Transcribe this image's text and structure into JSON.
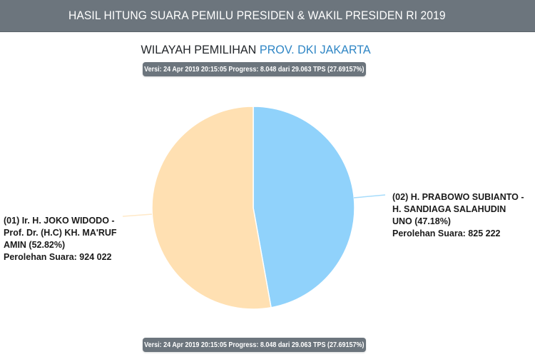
{
  "header": {
    "title": "HASIL HITUNG SUARA PEMILU PRESIDEN & WAKIL PRESIDEN RI 2019"
  },
  "region": {
    "prefix": "WILAYAH PEMILIHAN",
    "name": "PROV. DKI JAKARTA"
  },
  "version_badge": {
    "text": "Versi: 24 Apr 2019 20:15:05 Progress: 8.048 dari 29.063 TPS (27.69157%)"
  },
  "candidates": [
    {
      "label_lines": [
        "(01) Ir. H. JOKO WIDODO -",
        "Prof. Dr. (H.C) KH. MA'RUF",
        "AMIN (52.82%)",
        "Perolehan Suara: 924 022"
      ]
    },
    {
      "label_lines": [
        "(02) H. PRABOWO SUBIANTO -",
        "H. SANDIAGA SALAHUDIN",
        "UNO (47.18%)",
        "Perolehan Suara: 825 222"
      ]
    }
  ],
  "colors": {
    "header_bg": "#6c757d",
    "region_accent": "#2f86c5",
    "slice_01": "#ffe0b2",
    "slice_02": "#90d2fb",
    "leader_01": "#ffe9c8",
    "leader_02": "#a6dcfb"
  },
  "chart_data": {
    "type": "pie",
    "title": "WILAYAH PEMILIHAN PROV. DKI JAKARTA",
    "categories": [
      "(01) Ir. H. JOKO WIDODO - Prof. Dr. (H.C) KH. MA'RUF AMIN",
      "(02) H. PRABOWO SUBIANTO - H. SANDIAGA SALAHUDIN UNO"
    ],
    "values": [
      924022,
      825222
    ],
    "percentages": [
      52.82,
      47.18
    ],
    "colors": [
      "#ffe0b2",
      "#90d2fb"
    ],
    "start_angle": "12 o'clock, second slice clockwise",
    "legend": "none (outside labels with leader lines)"
  }
}
